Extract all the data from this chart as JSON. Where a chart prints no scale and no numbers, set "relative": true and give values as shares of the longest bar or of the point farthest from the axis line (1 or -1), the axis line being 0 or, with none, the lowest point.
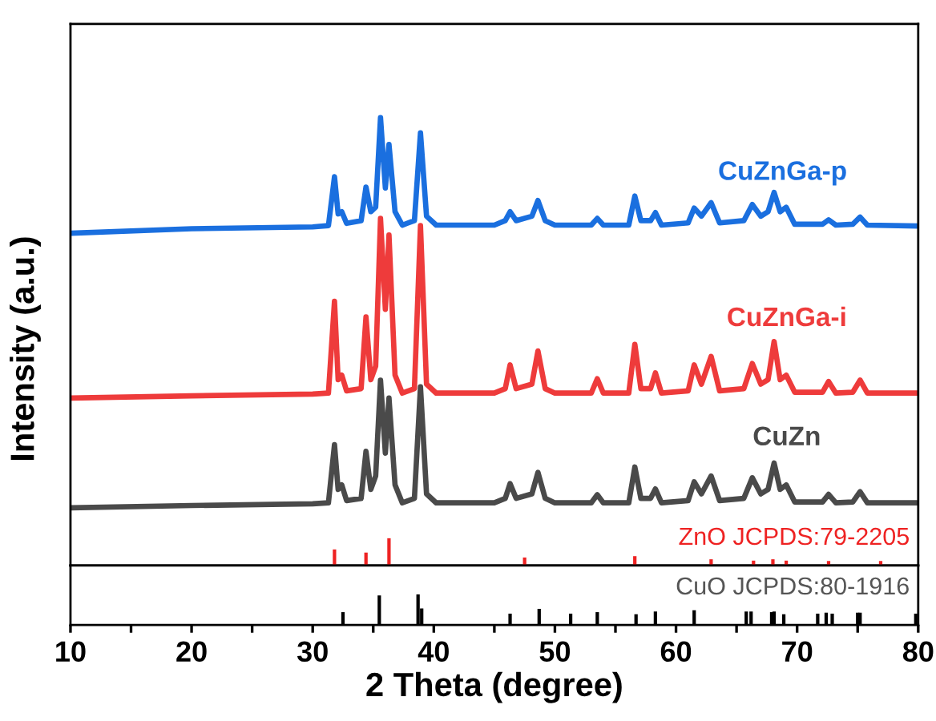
{
  "chart_data": [
    {
      "type": "line",
      "relative": true,
      "ylabel": "Intensity (a.u.)",
      "xlim": [
        10,
        80
      ],
      "tick_labels": false,
      "legend": false,
      "grid": false,
      "annotations": [
        "ZnO JCPDS:79-2205"
      ],
      "x": [
        10,
        20,
        30,
        31.3,
        31.8,
        32.1,
        32.4,
        32.8,
        34.0,
        34.4,
        34.8,
        35.2,
        35.6,
        36.0,
        36.3,
        36.8,
        37.4,
        38.4,
        38.9,
        39.4,
        40.2,
        45,
        45.9,
        46.3,
        46.8,
        48.1,
        48.6,
        49.2,
        50,
        53.0,
        53.5,
        54.0,
        56.1,
        56.6,
        57.1,
        57.9,
        58.3,
        58.8,
        61.0,
        61.5,
        62.1,
        62.9,
        63.6,
        65.6,
        66.3,
        67.0,
        67.6,
        68.1,
        68.6,
        69.1,
        69.8,
        72.1,
        72.6,
        73.2,
        74.6,
        75.2,
        75.8,
        80
      ],
      "series": [
        {
          "name": "CuZnGa-p",
          "color": "#1a6fdf",
          "values": [
            0.742,
            0.752,
            0.756,
            0.759,
            0.868,
            0.785,
            0.79,
            0.764,
            0.77,
            0.845,
            0.79,
            0.8,
            1.0,
            0.843,
            0.94,
            0.79,
            0.76,
            0.77,
            0.966,
            0.78,
            0.76,
            0.76,
            0.77,
            0.79,
            0.77,
            0.78,
            0.815,
            0.77,
            0.76,
            0.76,
            0.775,
            0.76,
            0.76,
            0.825,
            0.77,
            0.77,
            0.788,
            0.76,
            0.765,
            0.798,
            0.78,
            0.81,
            0.765,
            0.77,
            0.806,
            0.78,
            0.79,
            0.833,
            0.79,
            0.8,
            0.762,
            0.762,
            0.772,
            0.76,
            0.762,
            0.778,
            0.76,
            0.758
          ]
        },
        {
          "name": "CuZnGa-i",
          "color": "#ee3b3b",
          "values": [
            0.374,
            0.379,
            0.383,
            0.385,
            0.59,
            0.415,
            0.425,
            0.39,
            0.395,
            0.555,
            0.415,
            0.445,
            0.775,
            0.572,
            0.738,
            0.425,
            0.385,
            0.395,
            0.759,
            0.405,
            0.385,
            0.385,
            0.395,
            0.448,
            0.395,
            0.405,
            0.479,
            0.395,
            0.385,
            0.385,
            0.417,
            0.385,
            0.385,
            0.494,
            0.395,
            0.395,
            0.43,
            0.385,
            0.39,
            0.448,
            0.405,
            0.467,
            0.39,
            0.395,
            0.451,
            0.405,
            0.415,
            0.5,
            0.415,
            0.425,
            0.387,
            0.387,
            0.411,
            0.385,
            0.387,
            0.414,
            0.385,
            0.385
          ]
        },
        {
          "name": "CuZn",
          "color": "#4a4a4a",
          "values": [
            0.129,
            0.134,
            0.138,
            0.14,
            0.27,
            0.17,
            0.18,
            0.145,
            0.15,
            0.255,
            0.17,
            0.2,
            0.414,
            0.251,
            0.374,
            0.18,
            0.14,
            0.15,
            0.399,
            0.16,
            0.14,
            0.14,
            0.15,
            0.183,
            0.15,
            0.16,
            0.208,
            0.15,
            0.14,
            0.14,
            0.158,
            0.14,
            0.14,
            0.22,
            0.15,
            0.15,
            0.171,
            0.14,
            0.145,
            0.187,
            0.16,
            0.2,
            0.145,
            0.15,
            0.196,
            0.16,
            0.17,
            0.229,
            0.17,
            0.18,
            0.142,
            0.142,
            0.159,
            0.14,
            0.142,
            0.165,
            0.14,
            0.14
          ]
        },
        {
          "type": "bar",
          "color": "#ee2222",
          "x": [
            31.8,
            34.4,
            36.3,
            47.5,
            56.6,
            62.9,
            66.4,
            68.0,
            69.1,
            72.6,
            76.9
          ],
          "values": [
            0.036,
            0.029,
            0.061,
            0.018,
            0.021,
            0.014,
            0.011,
            0.014,
            0.011,
            0.01,
            0.01
          ]
        }
      ]
    },
    {
      "type": "bar",
      "relative": true,
      "xlabel": "2 Theta (degree)",
      "xlim": [
        10,
        80
      ],
      "tick_labels": "x",
      "legend": false,
      "grid": false,
      "color": "#000000",
      "xticks": [
        10,
        {
          "value": 15,
          "label": null
        },
        20,
        {
          "value": 25,
          "label": null
        },
        30,
        {
          "value": 35,
          "label": null
        },
        40,
        {
          "value": 45,
          "label": null
        },
        50,
        {
          "value": 55,
          "label": null
        },
        60,
        {
          "value": 65,
          "label": null
        },
        70,
        {
          "value": 75,
          "label": null
        },
        80
      ],
      "annotations": [
        "CuO JCPDS:80-1916"
      ],
      "x": [
        32.5,
        35.5,
        38.7,
        39.0,
        46.3,
        48.7,
        51.3,
        53.5,
        56.7,
        58.3,
        61.5,
        65.8,
        66.2,
        67.9,
        68.1,
        68.9,
        71.7,
        72.4,
        72.9,
        75.0,
        75.2,
        79.8
      ],
      "values": [
        0.42,
        0.97,
        1.0,
        0.54,
        0.37,
        0.53,
        0.37,
        0.42,
        0.35,
        0.44,
        0.48,
        0.44,
        0.44,
        0.42,
        0.44,
        0.35,
        0.37,
        0.4,
        0.37,
        0.4,
        0.4,
        0.37
      ]
    }
  ]
}
